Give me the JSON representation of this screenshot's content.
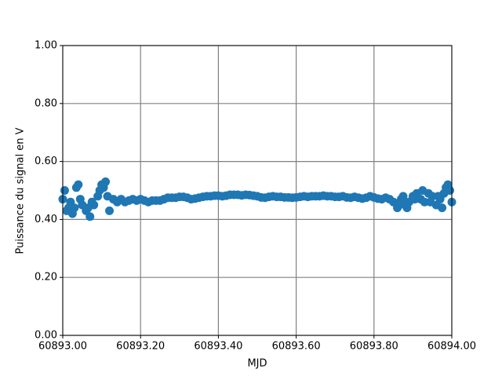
{
  "chart_data": {
    "type": "scatter",
    "xlabel": "MJD",
    "ylabel": "Puissance du signal en V",
    "color": "#1f77b4",
    "grid": true,
    "x": [
      60893.0,
      60893.01,
      60893.02,
      60893.03,
      60893.04,
      60893.05,
      60893.06,
      60893.07,
      60893.08,
      60893.09,
      60893.1,
      60893.11,
      60893.12,
      60893.13,
      60893.14,
      60893.15,
      60893.16,
      60893.17,
      60893.18,
      60893.19,
      60893.2,
      60893.21,
      60893.22,
      60893.23,
      60893.24,
      60893.25,
      60893.26,
      60893.27,
      60893.28,
      60893.29,
      60893.3,
      60893.31,
      60893.32,
      60893.33,
      60893.34,
      60893.35,
      60893.36,
      60893.37,
      60893.38,
      60893.39,
      60893.4,
      60893.41,
      60893.42,
      60893.43,
      60893.44,
      60893.45,
      60893.46,
      60893.47,
      60893.48,
      60893.49,
      60893.5,
      60893.51,
      60893.52,
      60893.53,
      60893.54,
      60893.55,
      60893.56,
      60893.57,
      60893.58,
      60893.59,
      60893.6,
      60893.61,
      60893.62,
      60893.63,
      60893.64,
      60893.65,
      60893.66,
      60893.67,
      60893.68,
      60893.69,
      60893.7,
      60893.71,
      60893.72,
      60893.73,
      60893.74,
      60893.75,
      60893.76,
      60893.77,
      60893.78,
      60893.79,
      60893.8,
      60893.81,
      60893.82,
      60893.83,
      60893.84,
      60893.85,
      60893.86,
      60893.87,
      60893.88,
      60893.89,
      60893.9,
      60893.91,
      60893.92,
      60893.93,
      60893.94,
      60893.95,
      60893.96,
      60893.97,
      60893.98,
      60893.99,
      60894.0,
      60893.005,
      60893.015,
      60893.025,
      60893.035,
      60893.045,
      60893.065,
      60893.075,
      60893.095,
      60893.105,
      60893.115,
      60893.865,
      60893.875,
      60893.885,
      60893.905,
      60893.925,
      60893.945,
      60893.965,
      60893.975,
      60893.985,
      60893.995
    ],
    "values": [
      0.47,
      0.43,
      0.46,
      0.44,
      0.52,
      0.45,
      0.43,
      0.41,
      0.45,
      0.48,
      0.52,
      0.53,
      0.43,
      0.47,
      0.46,
      0.47,
      0.46,
      0.465,
      0.47,
      0.465,
      0.47,
      0.465,
      0.46,
      0.465,
      0.465,
      0.465,
      0.47,
      0.475,
      0.475,
      0.475,
      0.478,
      0.478,
      0.475,
      0.47,
      0.472,
      0.475,
      0.478,
      0.48,
      0.48,
      0.482,
      0.482,
      0.48,
      0.482,
      0.485,
      0.485,
      0.485,
      0.483,
      0.485,
      0.484,
      0.482,
      0.48,
      0.476,
      0.475,
      0.478,
      0.48,
      0.478,
      0.478,
      0.476,
      0.476,
      0.475,
      0.476,
      0.478,
      0.48,
      0.478,
      0.48,
      0.48,
      0.48,
      0.482,
      0.48,
      0.48,
      0.478,
      0.478,
      0.48,
      0.476,
      0.475,
      0.478,
      0.475,
      0.472,
      0.475,
      0.48,
      0.476,
      0.472,
      0.47,
      0.475,
      0.47,
      0.46,
      0.44,
      0.47,
      0.45,
      0.46,
      0.48,
      0.49,
      0.47,
      0.46,
      0.49,
      0.48,
      0.45,
      0.47,
      0.49,
      0.52,
      0.46,
      0.5,
      0.44,
      0.42,
      0.51,
      0.47,
      0.44,
      0.46,
      0.5,
      0.51,
      0.48,
      0.45,
      0.48,
      0.44,
      0.47,
      0.5,
      0.46,
      0.48,
      0.44,
      0.51,
      0.5
    ],
    "xlim": [
      60893.0,
      60894.0
    ],
    "xticks": [
      {
        "value": 60893.0,
        "label": "60893.00"
      },
      {
        "value": 60893.2,
        "label": "60893.20"
      },
      {
        "value": 60893.4,
        "label": "60893.40"
      },
      {
        "value": 60893.6,
        "label": "60893.60"
      },
      {
        "value": 60893.8,
        "label": "60893.80"
      },
      {
        "value": 60894.0,
        "label": "60894.00"
      }
    ],
    "ylim": [
      0,
      1
    ],
    "yticks": [
      {
        "value": 0,
        "label": "0.00"
      },
      {
        "value": 0.2,
        "label": "0.20"
      },
      {
        "value": 0.4,
        "label": "0.40"
      },
      {
        "value": 0.6,
        "label": "0.60"
      },
      {
        "value": 0.8,
        "label": "0.80"
      },
      {
        "value": 1,
        "label": "1.00"
      }
    ]
  }
}
